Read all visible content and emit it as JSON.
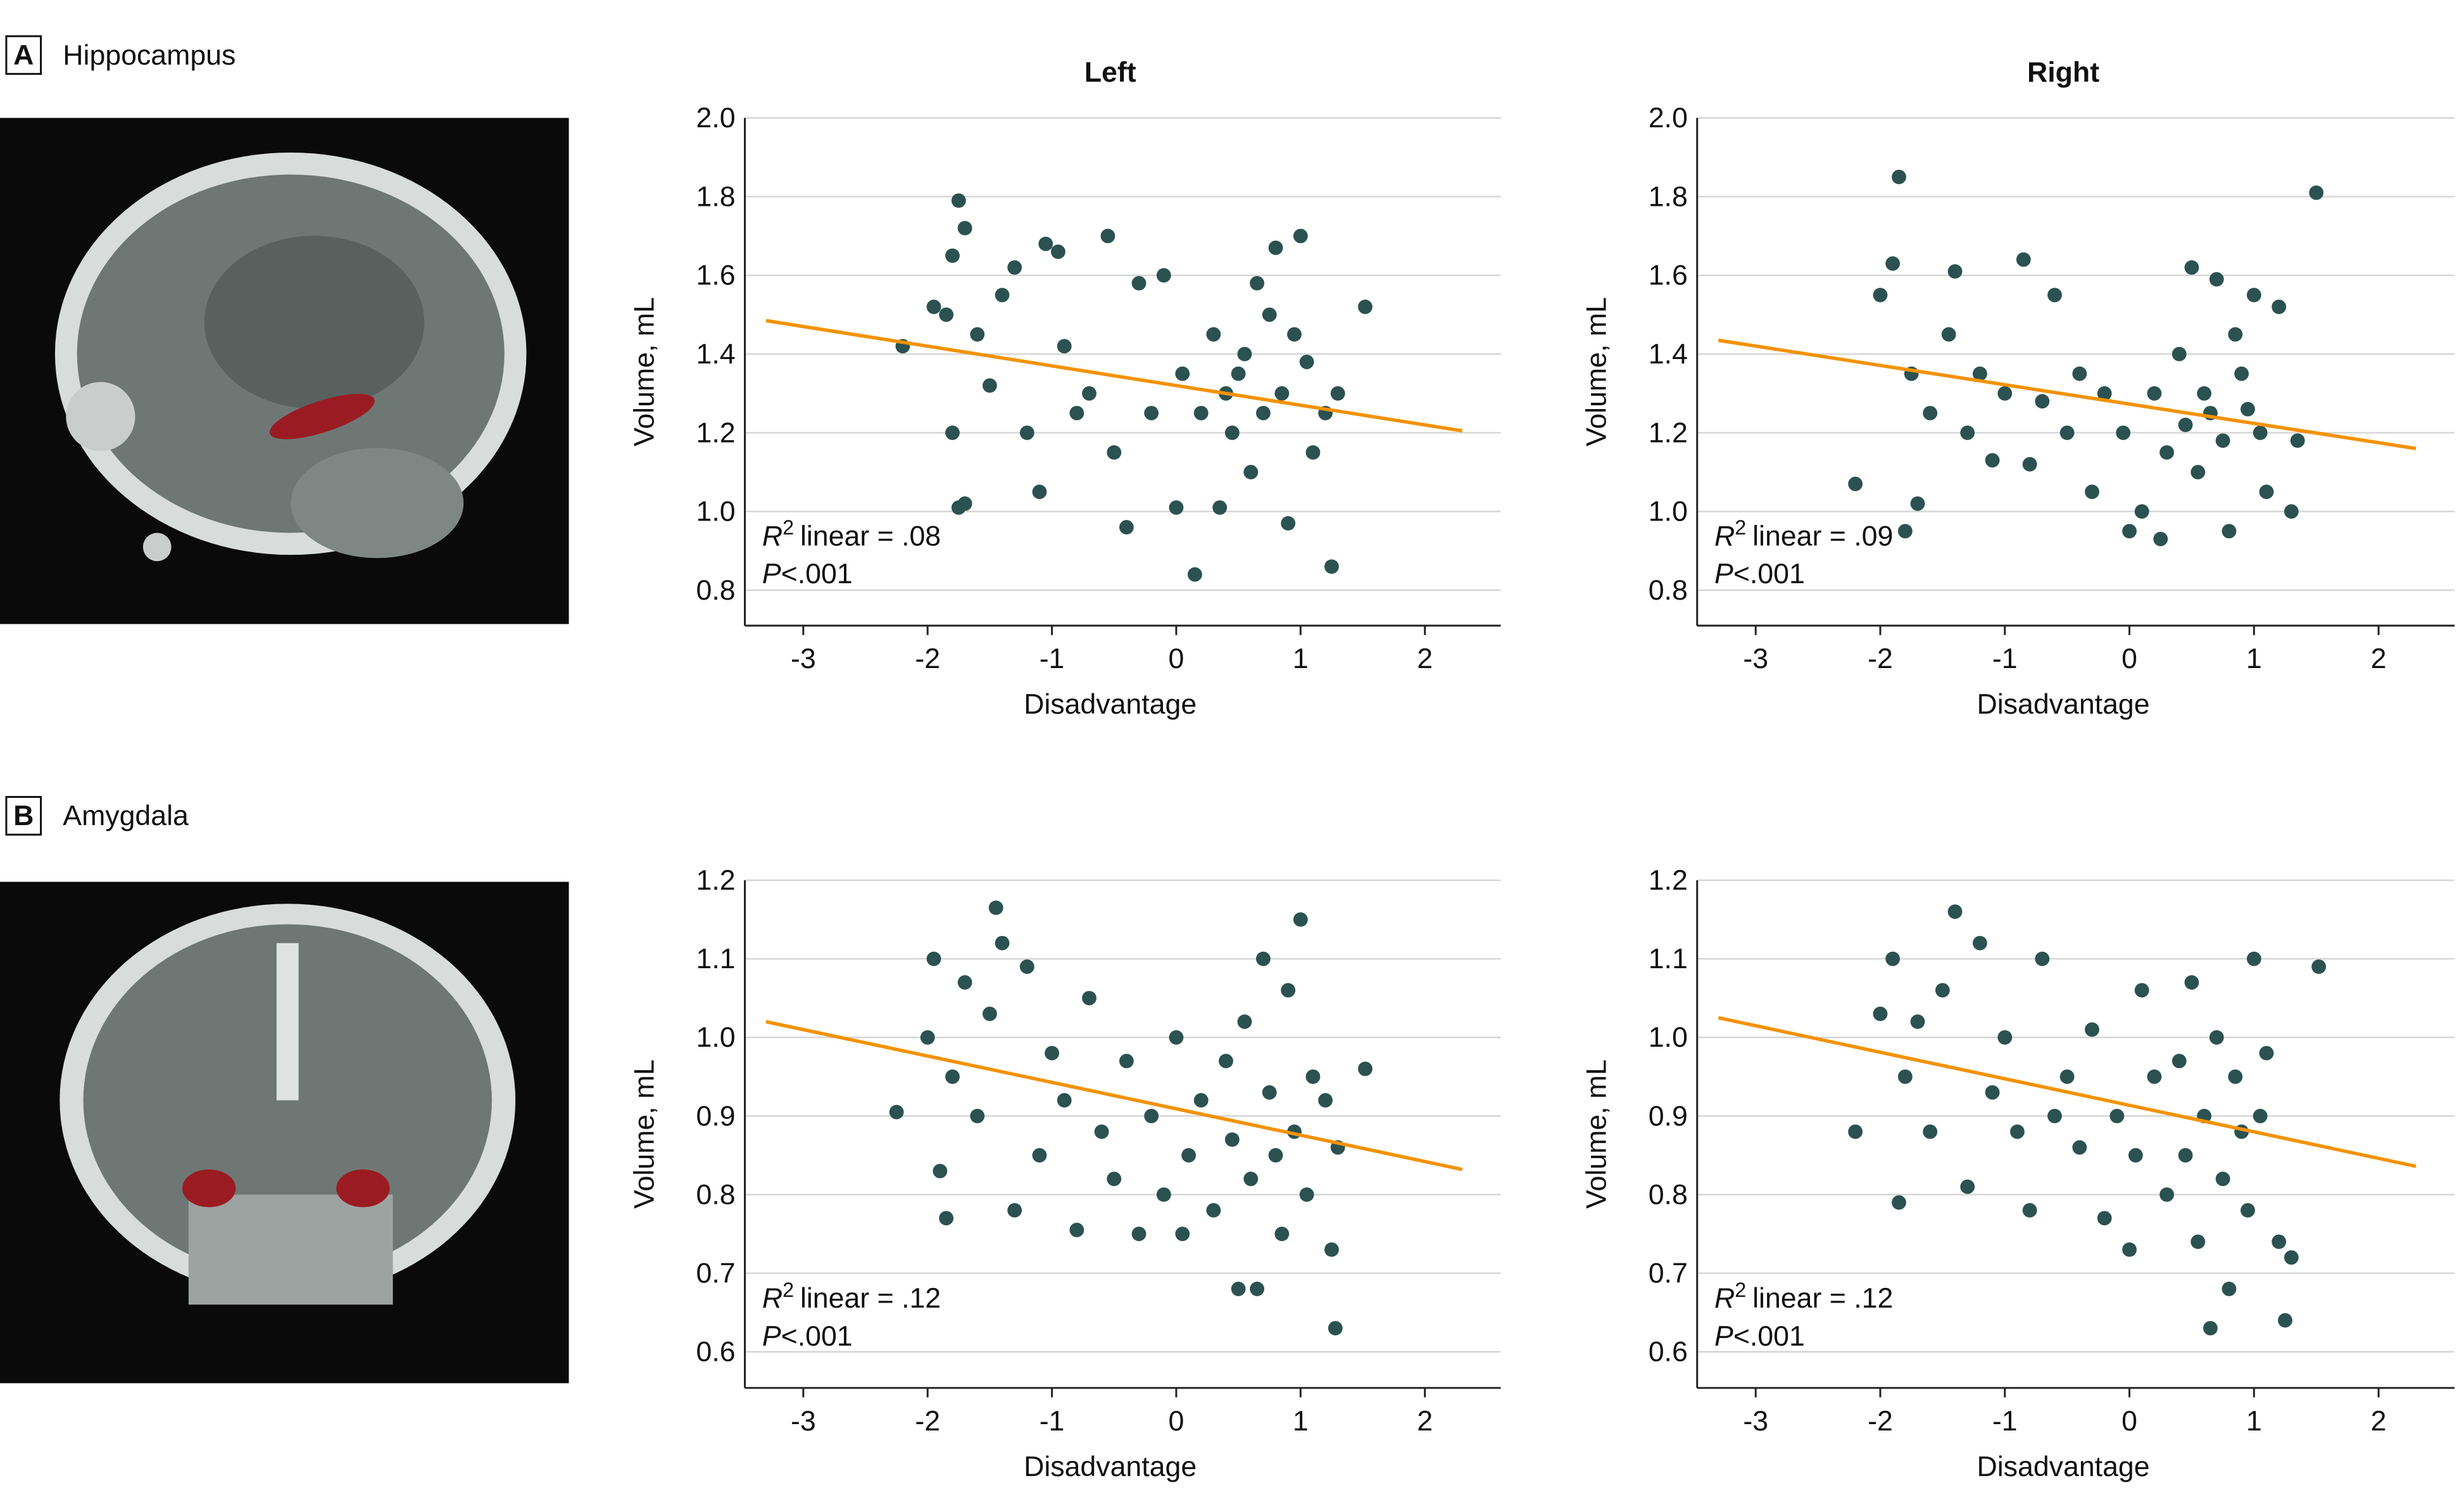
{
  "panels": [
    {
      "letter": "A",
      "title": "Hippocampus"
    },
    {
      "letter": "B",
      "title": "Amygdala"
    }
  ],
  "chart_data": [
    {
      "type": "scatter",
      "title": "Left",
      "xlabel": "Disadvantage",
      "ylabel": "Volume, mL",
      "xlim": [
        -3.47,
        2.61
      ],
      "ylim": [
        0.71,
        2.0
      ],
      "xticks": [
        -3,
        -2,
        -1,
        0,
        1,
        2
      ],
      "yticks": [
        0.8,
        {
          "value": 1,
          "label": "1.0"
        },
        1.2,
        1.4,
        1.6,
        1.8,
        {
          "value": 2,
          "label": "2.0"
        }
      ],
      "grid": true,
      "color": "#2b5250",
      "x": [
        -2.2,
        -1.95,
        -1.85,
        -1.8,
        -1.75,
        -1.7,
        -1.8,
        -1.75,
        -1.7,
        -1.6,
        -1.5,
        -1.4,
        -1.3,
        -1.2,
        -1.1,
        -1.05,
        -0.95,
        -0.9,
        -0.8,
        -0.7,
        -0.55,
        -0.5,
        -0.4,
        -0.3,
        -0.2,
        -0.1,
        0.0,
        0.05,
        0.15,
        0.2,
        0.3,
        0.35,
        0.4,
        0.45,
        0.5,
        0.55,
        0.6,
        0.65,
        0.7,
        0.75,
        0.8,
        0.85,
        0.9,
        0.95,
        1.0,
        1.05,
        1.1,
        1.2,
        1.25,
        1.3,
        1.52
      ],
      "values": [
        1.42,
        1.52,
        1.5,
        1.65,
        1.79,
        1.72,
        1.2,
        1.01,
        1.02,
        1.45,
        1.32,
        1.55,
        1.62,
        1.2,
        1.05,
        1.68,
        1.66,
        1.42,
        1.25,
        1.3,
        1.7,
        1.15,
        0.96,
        1.58,
        1.25,
        1.6,
        1.01,
        1.35,
        0.84,
        1.25,
        1.45,
        1.01,
        1.3,
        1.2,
        1.35,
        1.4,
        1.1,
        1.58,
        1.25,
        1.5,
        1.67,
        1.3,
        0.97,
        1.45,
        1.7,
        1.38,
        1.15,
        1.25,
        0.86,
        1.3,
        1.52
      ],
      "fit": {
        "color": "#f39200",
        "x": [
          -3.3,
          2.3
        ],
        "y": [
          1.485,
          1.205
        ]
      },
      "annotation": {
        "r_symbol": "R",
        "superscript": "2",
        "r_text": "linear = .08",
        "p_symbol": "P",
        "p_text": "<.001"
      }
    },
    {
      "type": "scatter",
      "title": "Right",
      "xlabel": "Disadvantage",
      "ylabel": "Volume, mL",
      "xlim": [
        -3.47,
        2.61
      ],
      "ylim": [
        0.71,
        2.0
      ],
      "xticks": [
        -3,
        -2,
        -1,
        0,
        1,
        2
      ],
      "yticks": [
        0.8,
        {
          "value": 1,
          "label": "1.0"
        },
        1.2,
        1.4,
        1.6,
        1.8,
        {
          "value": 2,
          "label": "2.0"
        }
      ],
      "grid": true,
      "color": "#2b5250",
      "x": [
        -2.2,
        -2.0,
        -1.85,
        -1.9,
        -1.8,
        -1.7,
        -1.75,
        -1.6,
        -1.45,
        -1.4,
        -1.3,
        -1.2,
        -1.1,
        -1.0,
        -0.85,
        -0.8,
        -0.7,
        -0.6,
        -0.5,
        -0.4,
        -0.3,
        -0.2,
        -0.05,
        0.0,
        0.1,
        0.2,
        0.25,
        0.3,
        0.4,
        0.45,
        0.5,
        0.55,
        0.6,
        0.65,
        0.7,
        0.75,
        0.8,
        0.85,
        0.9,
        0.95,
        1.0,
        1.05,
        1.1,
        1.2,
        1.3,
        1.35,
        1.5
      ],
      "values": [
        1.07,
        1.55,
        1.85,
        1.63,
        0.95,
        1.02,
        1.35,
        1.25,
        1.45,
        1.61,
        1.2,
        1.35,
        1.13,
        1.3,
        1.64,
        1.12,
        1.28,
        1.55,
        1.2,
        1.35,
        1.05,
        1.3,
        1.2,
        0.95,
        1.0,
        1.3,
        0.93,
        1.15,
        1.4,
        1.22,
        1.62,
        1.1,
        1.3,
        1.25,
        1.59,
        1.18,
        0.95,
        1.45,
        1.35,
        1.26,
        1.55,
        1.2,
        1.05,
        1.52,
        1.0,
        1.18,
        1.81
      ],
      "fit": {
        "color": "#f39200",
        "x": [
          -3.3,
          2.3
        ],
        "y": [
          1.435,
          1.16
        ]
      },
      "annotation": {
        "r_symbol": "R",
        "superscript": "2",
        "r_text": "linear = .09",
        "p_symbol": "P",
        "p_text": "<.001"
      }
    },
    {
      "type": "scatter",
      "xlabel": "Disadvantage",
      "ylabel": "Volume, mL",
      "xlim": [
        -3.47,
        2.61
      ],
      "ylim": [
        0.554,
        1.2
      ],
      "xticks": [
        -3,
        -2,
        -1,
        0,
        1,
        2
      ],
      "yticks": [
        0.6,
        0.7,
        0.8,
        0.9,
        {
          "value": 1,
          "label": "1.0"
        },
        1.1,
        1.2
      ],
      "grid": true,
      "color": "#2b5250",
      "x": [
        -2.25,
        -2.0,
        -1.95,
        -1.9,
        -1.85,
        -1.8,
        -1.7,
        -1.6,
        -1.5,
        -1.45,
        -1.4,
        -1.3,
        -1.2,
        -1.1,
        -1.0,
        -0.9,
        -0.8,
        -0.7,
        -0.6,
        -0.5,
        -0.4,
        -0.3,
        -0.2,
        -0.1,
        0.0,
        0.05,
        0.1,
        0.2,
        0.3,
        0.4,
        0.45,
        0.5,
        0.55,
        0.6,
        0.65,
        0.7,
        0.75,
        0.8,
        0.85,
        0.9,
        0.95,
        1.0,
        1.05,
        1.1,
        1.2,
        1.25,
        1.28,
        1.3,
        1.52
      ],
      "values": [
        0.905,
        1.0,
        1.1,
        0.83,
        0.77,
        0.95,
        1.07,
        0.9,
        1.03,
        1.165,
        1.12,
        0.78,
        1.09,
        0.85,
        0.98,
        0.92,
        0.755,
        1.05,
        0.88,
        0.82,
        0.97,
        0.75,
        0.9,
        0.8,
        1.0,
        0.75,
        0.85,
        0.92,
        0.78,
        0.97,
        0.87,
        0.68,
        1.02,
        0.82,
        0.68,
        1.1,
        0.93,
        0.85,
        0.75,
        1.06,
        0.88,
        1.15,
        0.8,
        0.95,
        0.92,
        0.73,
        0.63,
        0.86,
        0.96
      ],
      "fit": {
        "color": "#f39200",
        "x": [
          -3.3,
          2.3
        ],
        "y": [
          1.02,
          0.832
        ]
      },
      "annotation": {
        "r_symbol": "R",
        "superscript": "2",
        "r_text": "linear = .12",
        "p_symbol": "P",
        "p_text": "<.001"
      }
    },
    {
      "type": "scatter",
      "xlabel": "Disadvantage",
      "ylabel": "Volume, mL",
      "xlim": [
        -3.47,
        2.61
      ],
      "ylim": [
        0.554,
        1.2
      ],
      "xticks": [
        -3,
        -2,
        -1,
        0,
        1,
        2
      ],
      "yticks": [
        0.6,
        0.7,
        0.8,
        0.9,
        {
          "value": 1,
          "label": "1.0"
        },
        1.1,
        1.2
      ],
      "grid": true,
      "color": "#2b5250",
      "x": [
        -2.2,
        -2.0,
        -1.9,
        -1.85,
        -1.8,
        -1.7,
        -1.6,
        -1.5,
        -1.4,
        -1.3,
        -1.2,
        -1.1,
        -1.0,
        -0.9,
        -0.8,
        -0.7,
        -0.6,
        -0.5,
        -0.4,
        -0.3,
        -0.2,
        -0.1,
        0.0,
        0.05,
        0.1,
        0.2,
        0.3,
        0.4,
        0.45,
        0.5,
        0.55,
        0.6,
        0.65,
        0.7,
        0.75,
        0.8,
        0.85,
        0.9,
        0.95,
        1.0,
        1.05,
        1.1,
        1.2,
        1.25,
        1.3,
        1.52
      ],
      "values": [
        0.88,
        1.03,
        1.1,
        0.79,
        0.95,
        1.02,
        0.88,
        1.06,
        1.16,
        0.81,
        1.12,
        0.93,
        1.0,
        0.88,
        0.78,
        1.1,
        0.9,
        0.95,
        0.86,
        1.01,
        0.77,
        0.9,
        0.73,
        0.85,
        1.06,
        0.95,
        0.8,
        0.97,
        0.85,
        1.07,
        0.74,
        0.9,
        0.63,
        1.0,
        0.82,
        0.68,
        0.95,
        0.88,
        0.78,
        1.1,
        0.9,
        0.98,
        0.74,
        0.64,
        0.72,
        1.09
      ],
      "fit": {
        "color": "#f39200",
        "x": [
          -3.3,
          2.3
        ],
        "y": [
          1.025,
          0.836
        ]
      },
      "annotation": {
        "r_symbol": "R",
        "superscript": "2",
        "r_text": "linear = .12",
        "p_symbol": "P",
        "p_text": "<.001"
      }
    }
  ]
}
